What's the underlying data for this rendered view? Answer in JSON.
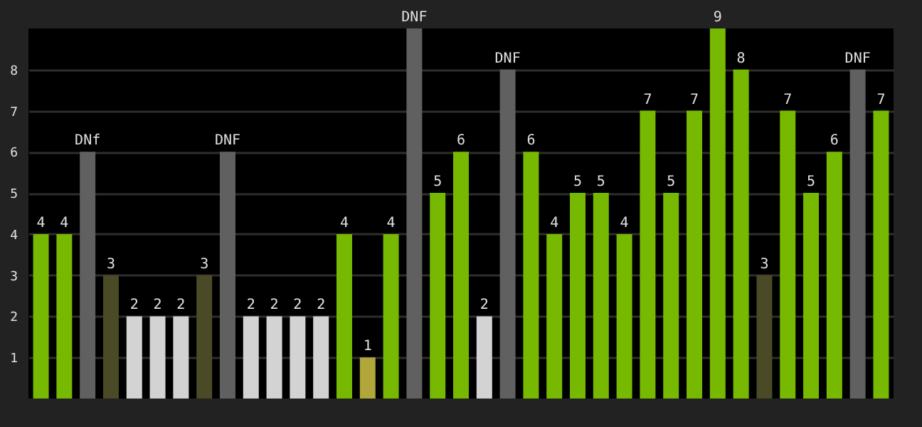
{
  "chart_data": {
    "type": "bar",
    "categories": [
      null,
      null,
      null,
      null,
      null,
      null,
      null,
      null,
      null,
      null,
      null,
      null,
      null,
      null,
      null,
      null,
      null,
      null,
      null,
      null,
      null,
      null,
      null,
      null,
      null,
      null,
      null,
      null,
      null,
      null,
      null,
      null,
      null,
      null,
      null,
      null,
      null
    ],
    "values": [
      4,
      4,
      6,
      3,
      2,
      2,
      2,
      3,
      6,
      2,
      2,
      2,
      2,
      4,
      1,
      4,
      9,
      5,
      6,
      2,
      8,
      6,
      4,
      5,
      5,
      4,
      7,
      5,
      7,
      9,
      8,
      3,
      7,
      5,
      6,
      8,
      7
    ],
    "value_labels": [
      "4",
      "4",
      "DNf",
      "3",
      "2",
      "2",
      "2",
      "3",
      "DNF",
      "2",
      "2",
      "2",
      "2",
      "4",
      "1",
      "4",
      "DNF",
      "5",
      "6",
      "2",
      "DNF",
      "6",
      "4",
      "5",
      "5",
      "4",
      "7",
      "5",
      "7",
      "9",
      "8",
      "3",
      "7",
      "5",
      "6",
      "DNF",
      "7"
    ],
    "colors": [
      "#76b900",
      "#76b900",
      "#606060",
      "#4b4a26",
      "#d3d3d3",
      "#d3d3d3",
      "#d3d3d3",
      "#4b4a26",
      "#606060",
      "#d3d3d3",
      "#d3d3d3",
      "#d3d3d3",
      "#d3d3d3",
      "#76b900",
      "#b0a63a",
      "#76b900",
      "#606060",
      "#76b900",
      "#76b900",
      "#d3d3d3",
      "#606060",
      "#76b900",
      "#76b900",
      "#76b900",
      "#76b900",
      "#76b900",
      "#76b900",
      "#76b900",
      "#76b900",
      "#76b900",
      "#76b900",
      "#4b4a26",
      "#76b900",
      "#76b900",
      "#76b900",
      "#606060",
      "#76b900"
    ],
    "ylim": [
      0,
      9
    ],
    "yticks": [
      1,
      2,
      3,
      4,
      5,
      6,
      7,
      8
    ],
    "grid": "y",
    "tick_labels": "y"
  }
}
